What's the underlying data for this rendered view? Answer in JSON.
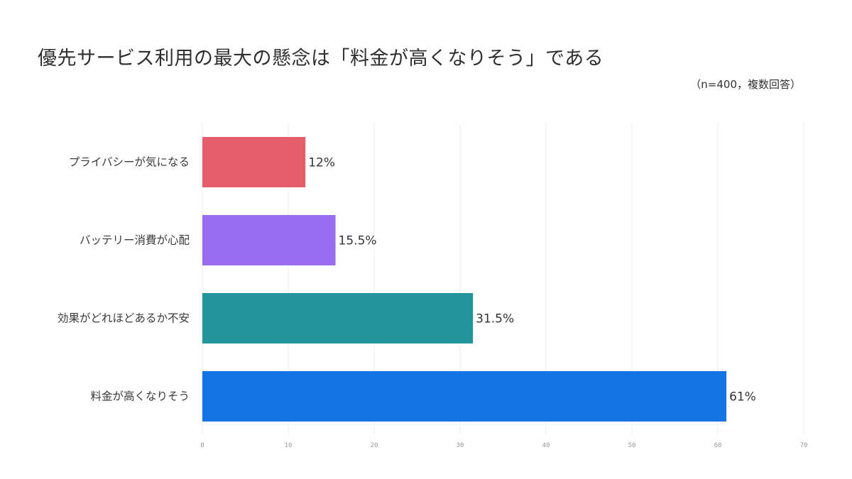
{
  "title": "優先サービス利用の最大の懸念は「料金が高くなりそう」である",
  "note": "（n=400，複数回答）",
  "chart_data": {
    "type": "bar",
    "orientation": "horizontal",
    "categories": [
      "プライバシーが気になる",
      "バッテリー消費が心配",
      "効果がどれほどあるか不安",
      "料金が高くなりそう"
    ],
    "values": [
      12,
      15.5,
      31.5,
      61
    ],
    "value_labels": [
      "12%",
      "15.5%",
      "31.5%",
      "61%"
    ],
    "colors": [
      "#e65e69",
      "#9a6cf0",
      "#23959a",
      "#1474e3"
    ],
    "xlim": [
      0,
      70
    ],
    "xticks": [
      0,
      10,
      20,
      30,
      40,
      50,
      60,
      70
    ],
    "xlabel": "",
    "ylabel": "",
    "grid": "vertical"
  }
}
